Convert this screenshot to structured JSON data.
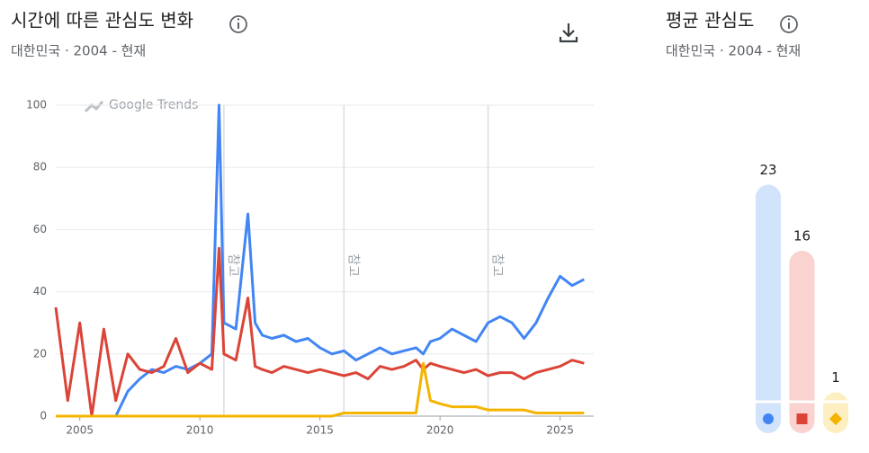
{
  "chart_data": [
    {
      "type": "line",
      "title": "시간에 따른 관심도 변화",
      "subtitle": "대한민국 · 2004 - 현재",
      "watermark": "Google Trends",
      "x": [
        2004,
        2004.5,
        2005,
        2005.5,
        2006,
        2006.5,
        2007,
        2007.5,
        2008,
        2008.5,
        2009,
        2009.5,
        2010,
        2010.5,
        2010.8,
        2011,
        2011.5,
        2012,
        2012.3,
        2012.6,
        2013,
        2013.5,
        2014,
        2014.5,
        2015,
        2015.5,
        2016,
        2016.5,
        2017,
        2017.5,
        2018,
        2018.5,
        2019,
        2019.3,
        2019.6,
        2020,
        2020.5,
        2021,
        2021.5,
        2022,
        2022.5,
        2023,
        2023.5,
        2024,
        2024.5,
        2025,
        2025.5,
        2026
      ],
      "series": [
        {
          "color": "#4285f4",
          "values": [
            0,
            0,
            0,
            0,
            0,
            0,
            8,
            12,
            15,
            14,
            16,
            15,
            17,
            20,
            100,
            30,
            28,
            65,
            30,
            26,
            25,
            26,
            24,
            25,
            22,
            20,
            21,
            18,
            20,
            22,
            20,
            21,
            22,
            20,
            24,
            25,
            28,
            26,
            24,
            30,
            32,
            30,
            25,
            30,
            38,
            45,
            42,
            44
          ]
        },
        {
          "color": "#db4437",
          "values": [
            35,
            5,
            30,
            0,
            28,
            5,
            20,
            15,
            14,
            16,
            25,
            14,
            17,
            15,
            54,
            20,
            18,
            38,
            16,
            15,
            14,
            16,
            15,
            14,
            15,
            14,
            13,
            14,
            12,
            16,
            15,
            16,
            18,
            15,
            17,
            16,
            15,
            14,
            15,
            13,
            14,
            14,
            12,
            14,
            15,
            16,
            18,
            17
          ]
        },
        {
          "color": "#f4b400",
          "values": [
            0,
            0,
            0,
            0,
            0,
            0,
            0,
            0,
            0,
            0,
            0,
            0,
            0,
            0,
            0,
            0,
            0,
            0,
            0,
            0,
            0,
            0,
            0,
            0,
            0,
            0,
            1,
            1,
            1,
            1,
            1,
            1,
            1,
            17,
            5,
            4,
            3,
            3,
            3,
            2,
            2,
            2,
            2,
            1,
            1,
            1,
            1,
            1
          ]
        }
      ],
      "xlim": [
        2004,
        2026.4
      ],
      "ylim": [
        0,
        100
      ],
      "xticks": [
        2005,
        2010,
        2015,
        2020,
        2025
      ],
      "yticks": [
        0,
        20,
        40,
        60,
        80,
        100
      ],
      "grid": true,
      "annotations": [
        {
          "x": 2011,
          "text": "참고"
        },
        {
          "x": 2016,
          "text": "참고"
        },
        {
          "x": 2022,
          "text": "참고"
        }
      ]
    },
    {
      "type": "bar",
      "title": "평균 관심도",
      "subtitle": "대한민국 · 2004 - 현재",
      "values": [
        23,
        16,
        1
      ],
      "colors": [
        "#d2e3fc",
        "#fad2cf",
        "#feefc3"
      ]
    }
  ]
}
